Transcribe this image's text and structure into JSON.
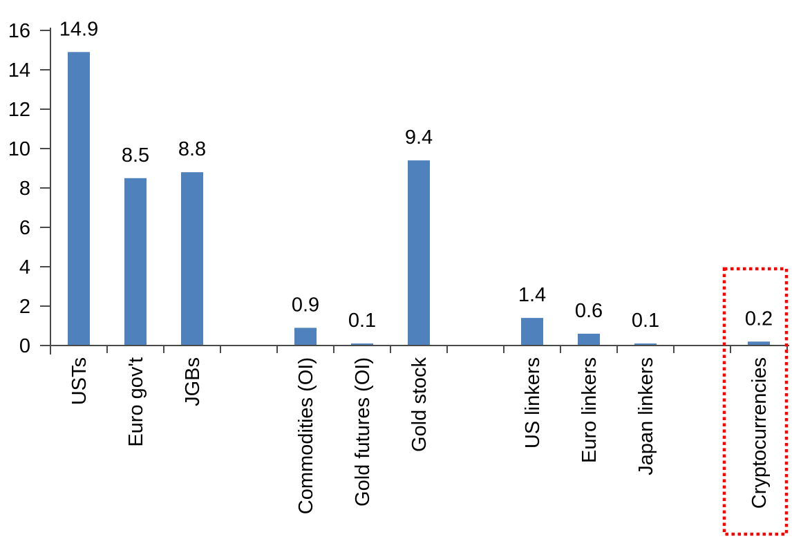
{
  "chart_data": {
    "type": "bar",
    "title": "",
    "xlabel": "",
    "ylabel": "",
    "categories": [
      "USTs",
      "Euro gov't",
      "JGBs",
      "",
      "Commodities (OI)",
      "Gold futures (OI)",
      "Gold stock",
      "",
      "US linkers",
      "Euro linkers",
      "Japan linkers",
      "",
      "Cryptocurrencies"
    ],
    "values": [
      14.9,
      8.5,
      8.8,
      null,
      0.9,
      0.1,
      9.4,
      null,
      1.4,
      0.6,
      0.1,
      null,
      0.2
    ],
    "data_labels": [
      "14.9",
      "8.5",
      "8.8",
      null,
      "0.9",
      "0.1",
      "9.4",
      null,
      "1.4",
      "0.6",
      "0.1",
      null,
      "0.2"
    ],
    "yticks": [
      0,
      2,
      4,
      6,
      8,
      10,
      12,
      14,
      16
    ],
    "ytick_labels": [
      "0",
      "2",
      "4",
      "6",
      "8",
      "10",
      "12",
      "14",
      "16"
    ],
    "ylim": [
      0,
      16
    ],
    "grid": "off",
    "legend": "none",
    "bar_color": "#4F81BD",
    "axis_color": "#4a4a4a",
    "text_color": "#000000",
    "highlight": {
      "category": "Cryptocurrencies",
      "slot_index": 12,
      "style": "dotted-box",
      "box_color": "#FF0000"
    }
  }
}
